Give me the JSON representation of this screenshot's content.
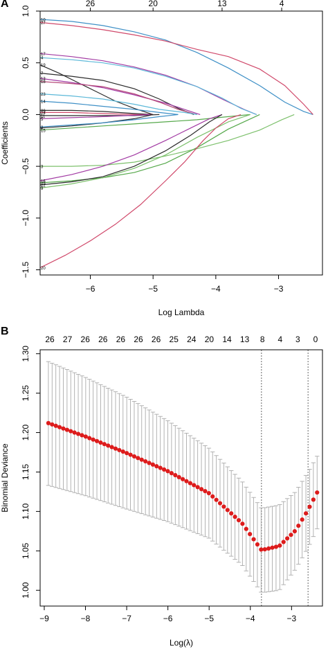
{
  "panels": {
    "a_tag": "A",
    "b_tag": "B"
  },
  "chart_data": [
    {
      "type": "line",
      "xlabel": "Log Lambda",
      "ylabel": "Coefficients",
      "xlim": [
        -6.8,
        -2.3
      ],
      "ylim": [
        -1.55,
        1.0
      ],
      "x_ticks": [
        -6,
        -5,
        -4,
        -3
      ],
      "y_ticks": [
        -1.5,
        -1.0,
        -0.5,
        0.0,
        0.5,
        1.0
      ],
      "top_axis": [
        {
          "x": -6.0,
          "label": "26"
        },
        {
          "x": -5.0,
          "label": "20"
        },
        {
          "x": -3.9,
          "label": "13"
        },
        {
          "x": -2.95,
          "label": "4"
        }
      ],
      "series": [
        {
          "name": "10",
          "color": "#3d8fc6",
          "x": [
            -6.8,
            -6.3,
            -5.8,
            -5.3,
            -4.8,
            -4.3,
            -3.8,
            -3.3,
            -2.9,
            -2.6,
            -2.45
          ],
          "y": [
            0.92,
            0.9,
            0.86,
            0.8,
            0.72,
            0.6,
            0.45,
            0.28,
            0.12,
            0.03,
            0.0
          ]
        },
        {
          "name": "27",
          "color": "#d0486a",
          "x": [
            -6.8,
            -6.3,
            -5.8,
            -5.3,
            -4.8,
            -4.3,
            -3.8,
            -3.3,
            -2.9,
            -2.6,
            -2.45
          ],
          "y": [
            0.89,
            0.86,
            0.82,
            0.77,
            0.71,
            0.63,
            0.56,
            0.44,
            0.28,
            0.1,
            0.0
          ]
        },
        {
          "name": "17",
          "color": "#a23aa3",
          "x": [
            -6.8,
            -6.3,
            -5.8,
            -5.3,
            -4.8,
            -4.3,
            -3.9,
            -3.55,
            -3.35
          ],
          "y": [
            0.59,
            0.56,
            0.52,
            0.46,
            0.38,
            0.27,
            0.15,
            0.05,
            0.0
          ]
        },
        {
          "name": "4",
          "color": "#5bb8d8",
          "x": [
            -6.8,
            -6.3,
            -5.8,
            -5.3,
            -4.8,
            -4.3,
            -3.9,
            -3.6,
            -3.35
          ],
          "y": [
            0.55,
            0.53,
            0.5,
            0.45,
            0.37,
            0.27,
            0.16,
            0.06,
            0.0
          ]
        },
        {
          "name": "19",
          "color": "#2b2b2b",
          "x": [
            -6.8,
            -6.5,
            -6.2,
            -5.9,
            -5.6,
            -5.3,
            -5.1,
            -5.0
          ],
          "y": [
            0.48,
            0.4,
            0.31,
            0.22,
            0.13,
            0.06,
            0.02,
            0.0
          ]
        },
        {
          "name": "7",
          "color": "#2b2b2b",
          "x": [
            -6.8,
            -6.3,
            -5.8,
            -5.3,
            -4.9,
            -4.6,
            -4.35
          ],
          "y": [
            0.4,
            0.37,
            0.33,
            0.25,
            0.15,
            0.06,
            0.0
          ]
        },
        {
          "name": "13",
          "color": "#a23aa3",
          "x": [
            -6.8,
            -6.3,
            -5.8,
            -5.3,
            -4.8,
            -4.5,
            -4.25
          ],
          "y": [
            0.35,
            0.31,
            0.26,
            0.19,
            0.11,
            0.05,
            0.0
          ]
        },
        {
          "name": "18",
          "color": "#b54a78",
          "x": [
            -6.8,
            -6.3,
            -5.8,
            -5.3,
            -4.9,
            -4.6,
            -4.3
          ],
          "y": [
            0.32,
            0.3,
            0.27,
            0.2,
            0.12,
            0.05,
            0.0
          ]
        },
        {
          "name": "23",
          "color": "#5bb8d8",
          "x": [
            -6.8,
            -6.3,
            -5.8,
            -5.3,
            -4.9,
            -4.5,
            -4.3
          ],
          "y": [
            0.2,
            0.18,
            0.15,
            0.1,
            0.05,
            0.02,
            0.0
          ]
        },
        {
          "name": "14",
          "color": "#3d8fc6",
          "x": [
            -6.8,
            -6.3,
            -5.8,
            -5.3,
            -4.9,
            -4.6
          ],
          "y": [
            0.13,
            0.11,
            0.08,
            0.05,
            0.02,
            0.0
          ]
        },
        {
          "name": "26",
          "color": "#2b2b2b",
          "x": [
            -6.8,
            -6.3,
            -5.8,
            -5.3,
            -5.0
          ],
          "y": [
            0.04,
            0.04,
            0.03,
            0.01,
            0.0
          ]
        },
        {
          "name": "24",
          "color": "#d0486a",
          "x": [
            -6.8,
            -6.3,
            -5.8,
            -5.3,
            -5.0
          ],
          "y": [
            0.02,
            0.02,
            0.01,
            0.0,
            0.0
          ]
        },
        {
          "name": "11",
          "color": "#2b2b2b",
          "x": [
            -6.8,
            -6.3,
            -5.8,
            -5.3,
            -4.9
          ],
          "y": [
            -0.01,
            -0.01,
            -0.01,
            -0.01,
            0.0
          ]
        },
        {
          "name": "5",
          "color": "#a23aa3",
          "x": [
            -6.8,
            -6.3,
            -5.8,
            -5.4,
            -5.05
          ],
          "y": [
            -0.04,
            -0.03,
            -0.02,
            -0.01,
            0.0
          ]
        },
        {
          "name": "1",
          "color": "#2b2b2b",
          "x": [
            -6.8,
            -6.3,
            -5.8,
            -5.3,
            -5.0
          ],
          "y": [
            -0.13,
            -0.11,
            -0.08,
            -0.04,
            0.0
          ]
        },
        {
          "name": "2",
          "color": "#3d8fc6",
          "x": [
            -6.8,
            -6.3,
            -5.8,
            -5.3,
            -4.9,
            -4.6
          ],
          "y": [
            -0.12,
            -0.1,
            -0.08,
            -0.05,
            -0.02,
            0.0
          ]
        },
        {
          "name": "15",
          "color": "#55a84a",
          "x": [
            -6.8,
            -6.3,
            -5.8,
            -5.3,
            -4.8,
            -4.3,
            -3.8,
            -3.45
          ],
          "y": [
            -0.15,
            -0.13,
            -0.11,
            -0.09,
            -0.07,
            -0.05,
            -0.02,
            0.0
          ]
        },
        {
          "name": "3",
          "color": "#7cc06b",
          "x": [
            -6.8,
            -6.3,
            -5.8,
            -5.3,
            -4.8,
            -4.3,
            -3.8,
            -3.3,
            -2.95,
            -2.75
          ],
          "y": [
            -0.5,
            -0.5,
            -0.49,
            -0.46,
            -0.4,
            -0.33,
            -0.25,
            -0.15,
            -0.05,
            0.0
          ]
        },
        {
          "name": "16",
          "color": "#a23aa3",
          "x": [
            -6.8,
            -6.3,
            -5.8,
            -5.3,
            -4.8,
            -4.4,
            -4.1,
            -3.9
          ],
          "y": [
            -0.64,
            -0.58,
            -0.5,
            -0.39,
            -0.25,
            -0.13,
            -0.04,
            0.0
          ]
        },
        {
          "name": "25",
          "color": "#55a84a",
          "x": [
            -6.8,
            -6.3,
            -5.8,
            -5.3,
            -4.8,
            -4.3,
            -3.8,
            -3.3
          ],
          "y": [
            -0.66,
            -0.64,
            -0.61,
            -0.56,
            -0.47,
            -0.32,
            -0.14,
            0.0
          ]
        },
        {
          "name": "22",
          "color": "#2b2b2b",
          "x": [
            -6.8,
            -6.3,
            -5.8,
            -5.3,
            -4.8,
            -4.4,
            -4.1,
            -3.9
          ],
          "y": [
            -0.68,
            -0.65,
            -0.6,
            -0.5,
            -0.35,
            -0.2,
            -0.07,
            0.0
          ]
        },
        {
          "name": "9",
          "color": "#7cc06b",
          "x": [
            -6.8,
            -6.3,
            -5.8,
            -5.3,
            -4.8,
            -4.3,
            -3.8,
            -3.45
          ],
          "y": [
            -0.71,
            -0.67,
            -0.61,
            -0.52,
            -0.39,
            -0.22,
            -0.07,
            0.0
          ]
        },
        {
          "name": "20",
          "color": "#d0486a",
          "x": [
            -6.8,
            -6.4,
            -6.0,
            -5.6,
            -5.2,
            -4.8,
            -4.5,
            -4.2,
            -4.0,
            -3.8,
            -3.6
          ],
          "y": [
            -1.48,
            -1.36,
            -1.22,
            -1.06,
            -0.87,
            -0.64,
            -0.46,
            -0.25,
            -0.13,
            -0.04,
            0.0
          ]
        }
      ]
    },
    {
      "type": "scatter",
      "xlabel": "Log(λ)",
      "ylabel": "Binomial Deviance",
      "xlim": [
        -9.1,
        -2.25
      ],
      "ylim": [
        0.98,
        1.305
      ],
      "x_ticks": [
        -9,
        -8,
        -7,
        -6,
        -5,
        -4,
        -3
      ],
      "y_ticks": [
        1.0,
        1.05,
        1.1,
        1.15,
        1.2,
        1.25,
        1.3
      ],
      "top_axis": [
        {
          "x": -8.9,
          "label": "26"
        },
        {
          "x": -8.38,
          "label": "27"
        },
        {
          "x": -7.86,
          "label": "26"
        },
        {
          "x": -7.34,
          "label": "26"
        },
        {
          "x": -6.82,
          "label": "26"
        },
        {
          "x": -6.3,
          "label": "26"
        },
        {
          "x": -5.78,
          "label": "26"
        },
        {
          "x": -5.26,
          "label": "25"
        },
        {
          "x": -4.74,
          "label": "24"
        },
        {
          "x": -4.22,
          "label": "20"
        },
        {
          "x": -3.7,
          "label": "14"
        },
        {
          "x": -3.18,
          "label": "13"
        },
        {
          "x": -2.66,
          "label": "8"
        },
        {
          "x": -2.45,
          "label": "4"
        },
        {
          "x": -2.26,
          "label": "3"
        },
        {
          "x": -2.14,
          "label": "0"
        }
      ],
      "cv_curve": {
        "x_start": -8.9,
        "x_end": -2.38,
        "n_points": 73,
        "anchor_x": [
          -8.9,
          -8.0,
          -7.0,
          -6.0,
          -5.0,
          -4.2,
          -3.73,
          -3.3,
          -2.9,
          -2.6,
          -2.38
        ],
        "anchor_mean": [
          1.212,
          1.195,
          1.174,
          1.151,
          1.123,
          1.085,
          1.051,
          1.056,
          1.076,
          1.102,
          1.124
        ],
        "anchor_upper": [
          1.29,
          1.27,
          1.245,
          1.215,
          1.18,
          1.138,
          1.104,
          1.108,
          1.125,
          1.15,
          1.17
        ],
        "anchor_lower": [
          1.133,
          1.12,
          1.103,
          1.087,
          1.066,
          1.032,
          0.997,
          1.0,
          1.027,
          1.054,
          1.078
        ]
      },
      "vlines": [
        -3.73,
        -2.6
      ],
      "point_color": "#dd1c1c",
      "errorbar_color": "#aaaaaa"
    }
  ]
}
